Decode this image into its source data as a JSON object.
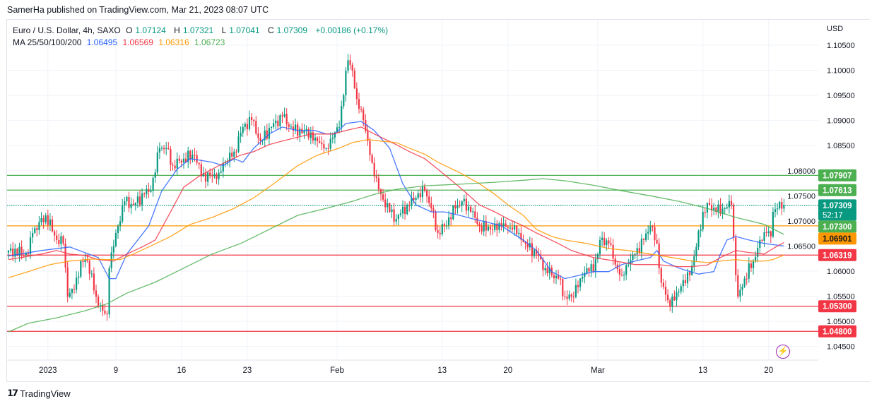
{
  "header": {
    "published": "SamerHa published on TradingView.com, Mar 21, 2023 08:07 UTC"
  },
  "legend": {
    "symbol": "Euro / U.S. Dollar, 4h, SAXO",
    "o_label": "O",
    "o": "1.07124",
    "h_label": "H",
    "h": "1.07321",
    "l_label": "L",
    "l": "1.07041",
    "c_label": "C",
    "c": "1.07309",
    "change": "+0.00186 (+0.17%)",
    "ma_label": "MA 25/50/100/200",
    "ma25": "1.06495",
    "ma50": "1.06569",
    "ma100": "1.06316",
    "ma200": "1.06723"
  },
  "currency": "USD",
  "footer": {
    "brand": "TradingView",
    "logo": "17"
  },
  "colors": {
    "up": "#089981",
    "down": "#f23645",
    "ma25": "#2962ff",
    "ma50": "#f23645",
    "ma100": "#ff9800",
    "ma200": "#4caf50"
  },
  "chart_data": {
    "type": "candlestick",
    "title": "Euro / U.S. Dollar, 4h, SAXO",
    "bars": 355,
    "y_ticks": [
      "1.10500",
      "1.10000",
      "1.09500",
      "1.09000",
      "1.08500",
      "1.08000",
      "1.07500",
      "1.07000",
      "1.06500",
      "1.06000",
      "1.05500",
      "1.05000",
      "1.04500"
    ],
    "x_ticks": [
      {
        "bar": 18,
        "label": "2023"
      },
      {
        "bar": 49,
        "label": "9"
      },
      {
        "bar": 79,
        "label": "16"
      },
      {
        "bar": 109,
        "label": "23"
      },
      {
        "bar": 150,
        "label": "Feb"
      },
      {
        "bar": 198,
        "label": "13"
      },
      {
        "bar": 228,
        "label": "20"
      },
      {
        "bar": 269,
        "label": "Mar"
      },
      {
        "bar": 317,
        "label": "13"
      },
      {
        "bar": 347,
        "label": "20"
      }
    ],
    "close_anchors": [
      [
        0,
        1.0641
      ],
      [
        9,
        1.0634
      ],
      [
        11,
        1.0676
      ],
      [
        17,
        1.0711
      ],
      [
        22,
        1.0662
      ],
      [
        25,
        1.0655
      ],
      [
        27,
        1.0549
      ],
      [
        30,
        1.0563
      ],
      [
        33,
        1.062
      ],
      [
        36,
        1.062
      ],
      [
        40,
        1.0549
      ],
      [
        43,
        1.0521
      ],
      [
        45,
        1.0514
      ],
      [
        46,
        1.0606
      ],
      [
        49,
        1.0676
      ],
      [
        53,
        1.0739
      ],
      [
        57,
        1.0732
      ],
      [
        62,
        1.0753
      ],
      [
        65,
        1.076
      ],
      [
        69,
        1.0845
      ],
      [
        72,
        1.0845
      ],
      [
        75,
        1.081
      ],
      [
        80,
        1.0824
      ],
      [
        85,
        1.0831
      ],
      [
        88,
        1.0789
      ],
      [
        93,
        1.0789
      ],
      [
        96,
        1.0796
      ],
      [
        99,
        1.0817
      ],
      [
        103,
        1.0838
      ],
      [
        107,
        1.0887
      ],
      [
        111,
        1.0901
      ],
      [
        115,
        1.0859
      ],
      [
        120,
        1.0887
      ],
      [
        125,
        1.0908
      ],
      [
        130,
        1.088
      ],
      [
        135,
        1.088
      ],
      [
        140,
        1.0866
      ],
      [
        145,
        1.0845
      ],
      [
        148,
        1.0866
      ],
      [
        151,
        1.0887
      ],
      [
        154,
        1.0999
      ],
      [
        155,
        1.102
      ],
      [
        157,
        1.0999
      ],
      [
        159,
        1.0943
      ],
      [
        162,
        1.0901
      ],
      [
        165,
        1.0831
      ],
      [
        167,
        1.0789
      ],
      [
        170,
        1.0753
      ],
      [
        174,
        1.0718
      ],
      [
        177,
        1.0704
      ],
      [
        182,
        1.0732
      ],
      [
        186,
        1.0746
      ],
      [
        190,
        1.076
      ],
      [
        193,
        1.0725
      ],
      [
        196,
        1.0676
      ],
      [
        199,
        1.069
      ],
      [
        204,
        1.0725
      ],
      [
        207,
        1.0739
      ],
      [
        211,
        1.0718
      ],
      [
        215,
        1.069
      ],
      [
        220,
        1.0683
      ],
      [
        225,
        1.069
      ],
      [
        230,
        1.0683
      ],
      [
        233,
        1.0676
      ],
      [
        236,
        1.0655
      ],
      [
        241,
        1.0634
      ],
      [
        245,
        1.0606
      ],
      [
        248,
        1.0592
      ],
      [
        251,
        1.0585
      ],
      [
        254,
        1.0549
      ],
      [
        257,
        1.0549
      ],
      [
        261,
        1.0585
      ],
      [
        264,
        1.0606
      ],
      [
        267,
        1.0599
      ],
      [
        270,
        1.0662
      ],
      [
        274,
        1.0655
      ],
      [
        277,
        1.0613
      ],
      [
        280,
        1.0592
      ],
      [
        283,
        1.0613
      ],
      [
        286,
        1.0634
      ],
      [
        290,
        1.0662
      ],
      [
        293,
        1.069
      ],
      [
        296,
        1.0655
      ],
      [
        298,
        1.0577
      ],
      [
        301,
        1.0542
      ],
      [
        304,
        1.0542
      ],
      [
        307,
        1.057
      ],
      [
        311,
        1.0592
      ],
      [
        314,
        1.0648
      ],
      [
        317,
        1.0718
      ],
      [
        320,
        1.0732
      ],
      [
        323,
        1.0718
      ],
      [
        327,
        1.0725
      ],
      [
        330,
        1.0732
      ],
      [
        332,
        1.0592
      ],
      [
        333,
        1.0549
      ],
      [
        336,
        1.0585
      ],
      [
        340,
        1.062
      ],
      [
        343,
        1.0662
      ],
      [
        346,
        1.0676
      ],
      [
        348,
        1.0669
      ],
      [
        349,
        1.0718
      ],
      [
        351,
        1.0725
      ],
      [
        354,
        1.07309
      ]
    ],
    "moving_averages": [
      {
        "name": "MA25",
        "color": "#2962ff",
        "points": [
          [
            0,
            1.063
          ],
          [
            15,
            1.0641
          ],
          [
            28,
            1.0648
          ],
          [
            41,
            1.0627
          ],
          [
            46,
            1.0585
          ],
          [
            49,
            1.0585
          ],
          [
            54,
            1.0634
          ],
          [
            64,
            1.069
          ],
          [
            70,
            1.076
          ],
          [
            77,
            1.0803
          ],
          [
            83,
            1.0824
          ],
          [
            93,
            1.0817
          ],
          [
            98,
            1.081
          ],
          [
            103,
            1.0824
          ],
          [
            107,
            1.0817
          ],
          [
            112,
            1.0845
          ],
          [
            119,
            1.0873
          ],
          [
            125,
            1.0887
          ],
          [
            132,
            1.088
          ],
          [
            140,
            1.088
          ],
          [
            145,
            1.0873
          ],
          [
            149,
            1.0873
          ],
          [
            154,
            1.0894
          ],
          [
            161,
            1.0898
          ],
          [
            167,
            1.088
          ],
          [
            174,
            1.0845
          ],
          [
            180,
            1.0774
          ],
          [
            186,
            1.0732
          ],
          [
            193,
            1.0718
          ],
          [
            199,
            1.0718
          ],
          [
            206,
            1.0711
          ],
          [
            212,
            1.0704
          ],
          [
            219,
            1.0697
          ],
          [
            225,
            1.069
          ],
          [
            235,
            1.0662
          ],
          [
            241,
            1.0641
          ],
          [
            248,
            1.0599
          ],
          [
            254,
            1.0585
          ],
          [
            261,
            1.0592
          ],
          [
            267,
            1.0599
          ],
          [
            274,
            1.0599
          ],
          [
            280,
            1.0613
          ],
          [
            286,
            1.062
          ],
          [
            293,
            1.0627
          ],
          [
            296,
            1.0641
          ],
          [
            299,
            1.062
          ],
          [
            306,
            1.0606
          ],
          [
            315,
            1.0594
          ],
          [
            322,
            1.0599
          ],
          [
            325,
            1.0634
          ],
          [
            328,
            1.0662
          ],
          [
            332,
            1.0669
          ],
          [
            338,
            1.0662
          ],
          [
            345,
            1.0655
          ],
          [
            354,
            1.065
          ]
        ]
      },
      {
        "name": "MA50",
        "color": "#f23645",
        "points": [
          [
            0,
            1.0623
          ],
          [
            15,
            1.0634
          ],
          [
            22,
            1.0641
          ],
          [
            28,
            1.0634
          ],
          [
            35,
            1.0631
          ],
          [
            41,
            1.0623
          ],
          [
            48,
            1.062
          ],
          [
            54,
            1.0634
          ],
          [
            61,
            1.0648
          ],
          [
            67,
            1.0662
          ],
          [
            74,
            1.0718
          ],
          [
            80,
            1.0767
          ],
          [
            87,
            1.0789
          ],
          [
            93,
            1.0803
          ],
          [
            99,
            1.0817
          ],
          [
            106,
            1.0831
          ],
          [
            112,
            1.0838
          ],
          [
            119,
            1.0852
          ],
          [
            125,
            1.0859
          ],
          [
            138,
            1.0873
          ],
          [
            148,
            1.0873
          ],
          [
            154,
            1.088
          ],
          [
            161,
            1.0887
          ],
          [
            167,
            1.0873
          ],
          [
            177,
            1.0852
          ],
          [
            183,
            1.0838
          ],
          [
            190,
            1.0824
          ],
          [
            196,
            1.0803
          ],
          [
            206,
            1.0767
          ],
          [
            215,
            1.0732
          ],
          [
            222,
            1.0718
          ],
          [
            228,
            1.0704
          ],
          [
            235,
            1.069
          ],
          [
            241,
            1.0676
          ],
          [
            251,
            1.0655
          ],
          [
            257,
            1.0641
          ],
          [
            267,
            1.0627
          ],
          [
            277,
            1.062
          ],
          [
            286,
            1.0613
          ],
          [
            296,
            1.0613
          ],
          [
            306,
            1.0609
          ],
          [
            312,
            1.0609
          ],
          [
            319,
            1.0612
          ],
          [
            325,
            1.0627
          ],
          [
            332,
            1.0641
          ],
          [
            338,
            1.0637
          ],
          [
            345,
            1.0634
          ],
          [
            349,
            1.0645
          ],
          [
            354,
            1.0657
          ]
        ]
      },
      {
        "name": "MA100",
        "color": "#ff9800",
        "points": [
          [
            0,
            1.0587
          ],
          [
            9,
            1.0599
          ],
          [
            19,
            1.0613
          ],
          [
            28,
            1.062
          ],
          [
            38,
            1.0624
          ],
          [
            45,
            1.0623
          ],
          [
            51,
            1.0623
          ],
          [
            57,
            1.0634
          ],
          [
            64,
            1.0648
          ],
          [
            74,
            1.0669
          ],
          [
            83,
            1.0693
          ],
          [
            93,
            1.0707
          ],
          [
            103,
            1.0725
          ],
          [
            112,
            1.0746
          ],
          [
            122,
            1.0777
          ],
          [
            132,
            1.081
          ],
          [
            141,
            1.0831
          ],
          [
            151,
            1.0845
          ],
          [
            157,
            1.0856
          ],
          [
            164,
            1.0862
          ],
          [
            170,
            1.0859
          ],
          [
            177,
            1.0856
          ],
          [
            183,
            1.0845
          ],
          [
            190,
            1.0833
          ],
          [
            196,
            1.0817
          ],
          [
            206,
            1.0796
          ],
          [
            215,
            1.0774
          ],
          [
            222,
            1.0753
          ],
          [
            228,
            1.0732
          ],
          [
            235,
            1.0711
          ],
          [
            241,
            1.0683
          ],
          [
            248,
            1.0669
          ],
          [
            254,
            1.0662
          ],
          [
            264,
            1.0655
          ],
          [
            274,
            1.0645
          ],
          [
            283,
            1.0641
          ],
          [
            293,
            1.0634
          ],
          [
            303,
            1.0627
          ],
          [
            312,
            1.062
          ],
          [
            319,
            1.0617
          ],
          [
            325,
            1.062
          ],
          [
            332,
            1.0623
          ],
          [
            338,
            1.062
          ],
          [
            345,
            1.062
          ],
          [
            349,
            1.0623
          ],
          [
            354,
            1.0632
          ]
        ]
      },
      {
        "name": "MA200",
        "color": "#4caf50",
        "points": [
          [
            0,
            1.0479
          ],
          [
            9,
            1.0496
          ],
          [
            22,
            1.0507
          ],
          [
            35,
            1.0521
          ],
          [
            45,
            1.0535
          ],
          [
            54,
            1.0556
          ],
          [
            67,
            1.0578
          ],
          [
            80,
            1.0606
          ],
          [
            93,
            1.0634
          ],
          [
            106,
            1.0655
          ],
          [
            119,
            1.0683
          ],
          [
            132,
            1.0711
          ],
          [
            145,
            1.0725
          ],
          [
            157,
            1.0739
          ],
          [
            167,
            1.0753
          ],
          [
            177,
            1.0763
          ],
          [
            190,
            1.077
          ],
          [
            206,
            1.0773
          ],
          [
            222,
            1.0777
          ],
          [
            235,
            1.0781
          ],
          [
            244,
            1.0784
          ],
          [
            254,
            1.078
          ],
          [
            267,
            1.0771
          ],
          [
            280,
            1.076
          ],
          [
            293,
            1.075
          ],
          [
            306,
            1.0739
          ],
          [
            319,
            1.0725
          ],
          [
            332,
            1.0707
          ],
          [
            345,
            1.0693
          ],
          [
            354,
            1.0673
          ]
        ]
      }
    ],
    "horizontal_levels": [
      {
        "price": 1.07907,
        "label": "1.07907",
        "color": "#4caf50",
        "text": "#ffffff",
        "style": "solid"
      },
      {
        "price": 1.07613,
        "label": "1.07613",
        "color": "#4caf50",
        "text": "#ffffff",
        "style": "solid"
      },
      {
        "price": 1.07309,
        "label": "1.07309",
        "sub": "52:17",
        "color": "#089981",
        "text": "#ffffff",
        "style": "dotted"
      },
      {
        "price": 1.073,
        "label": "1.07300",
        "color": "#4caf50",
        "text": "#ffffff",
        "style": "none"
      },
      {
        "price": 1.06901,
        "label": "1.06901",
        "color": "#ff9800",
        "text": "#131722",
        "style": "solid"
      },
      {
        "price": 1.06319,
        "label": "1.06319",
        "color": "#f23645",
        "text": "#ffffff",
        "style": "solid"
      },
      {
        "price": 1.053,
        "label": "1.05300",
        "color": "#f23645",
        "text": "#ffffff",
        "style": "solid"
      },
      {
        "price": 1.048,
        "label": "1.04800",
        "color": "#f23645",
        "text": "#ffffff",
        "style": "solid"
      }
    ]
  }
}
